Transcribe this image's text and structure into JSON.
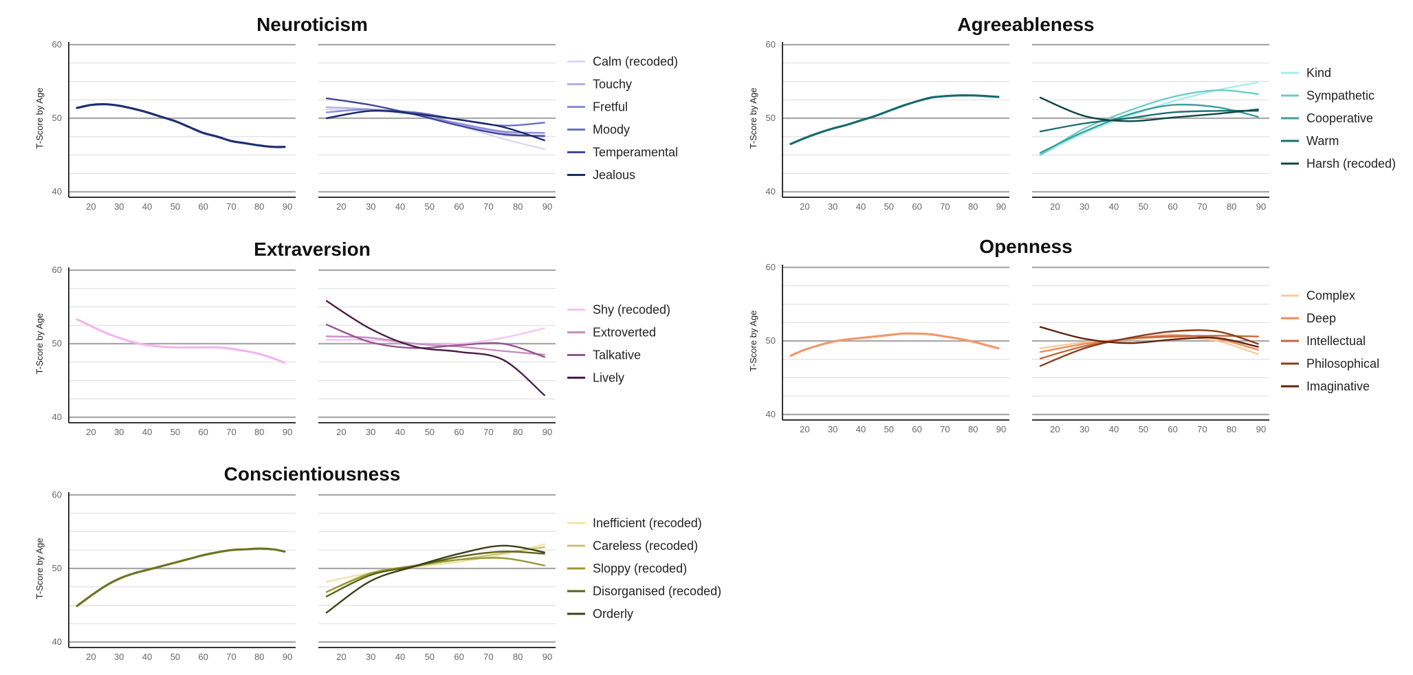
{
  "chart_data": [
    {
      "type": "line",
      "title": "Neuroticism",
      "ylabel": "T-Score by Age",
      "ylim": [
        40,
        60
      ],
      "xlim": [
        15,
        90
      ],
      "xticks": [
        20,
        30,
        40,
        50,
        60,
        70,
        80,
        90
      ],
      "yticks": [
        40,
        50,
        60
      ],
      "grid": true,
      "legend_position": "right",
      "composite": {
        "color": "#1d2f6f",
        "x": [
          15,
          20,
          25,
          30,
          35,
          40,
          45,
          50,
          55,
          60,
          65,
          70,
          75,
          80,
          85,
          89
        ],
        "y": [
          51.4,
          51.8,
          51.9,
          51.7,
          51.3,
          50.8,
          50.2,
          49.6,
          48.8,
          48.0,
          47.5,
          46.9,
          46.6,
          46.3,
          46.1,
          46.1
        ]
      },
      "series": [
        {
          "name": "Calm (recoded)",
          "color": "#d9d9f3",
          "x": [
            15,
            30,
            45,
            60,
            75,
            89
          ],
          "y": [
            51.2,
            51.0,
            50.5,
            49.0,
            47.2,
            45.8
          ]
        },
        {
          "name": "Touchy",
          "color": "#b0b0e6",
          "x": [
            15,
            30,
            45,
            60,
            75,
            89
          ],
          "y": [
            51.5,
            51.2,
            50.5,
            49.2,
            48.0,
            47.5
          ]
        },
        {
          "name": "Fretful",
          "color": "#8c8cd6",
          "x": [
            15,
            30,
            45,
            60,
            75,
            89
          ],
          "y": [
            50.8,
            51.2,
            50.5,
            49.3,
            48.2,
            48.0
          ]
        },
        {
          "name": "Moody",
          "color": "#6e70bf",
          "x": [
            15,
            30,
            45,
            60,
            75,
            89
          ],
          "y": [
            50.0,
            51.0,
            50.8,
            49.8,
            49.0,
            49.4
          ]
        },
        {
          "name": "Temperamental",
          "color": "#44489a",
          "x": [
            15,
            30,
            45,
            60,
            75,
            89
          ],
          "y": [
            52.7,
            51.8,
            50.5,
            49.0,
            47.8,
            47.6
          ]
        },
        {
          "name": "Jealous",
          "color": "#1a2a6c",
          "x": [
            15,
            30,
            45,
            60,
            75,
            89
          ],
          "y": [
            50.0,
            51.0,
            50.6,
            49.8,
            48.8,
            47.0
          ]
        }
      ]
    },
    {
      "type": "line",
      "title": "Agreeableness",
      "ylabel": "T-Score by Age",
      "ylim": [
        40,
        60
      ],
      "xlim": [
        15,
        90
      ],
      "xticks": [
        20,
        30,
        40,
        50,
        60,
        70,
        80,
        90
      ],
      "yticks": [
        40,
        50,
        60
      ],
      "grid": true,
      "legend_position": "right",
      "composite": {
        "color": "#176a6a",
        "x": [
          15,
          20,
          25,
          30,
          35,
          40,
          45,
          50,
          55,
          60,
          65,
          70,
          75,
          80,
          85,
          89
        ],
        "y": [
          46.5,
          47.3,
          48.0,
          48.6,
          49.1,
          49.7,
          50.3,
          51.0,
          51.7,
          52.3,
          52.8,
          53.0,
          53.1,
          53.1,
          53.0,
          52.9
        ]
      },
      "series": [
        {
          "name": "Kind",
          "color": "#a7ecec",
          "x": [
            15,
            30,
            45,
            60,
            75,
            89
          ],
          "y": [
            45.0,
            48.0,
            50.3,
            52.3,
            53.8,
            54.9
          ]
        },
        {
          "name": "Sympathetic",
          "color": "#6fcaca",
          "x": [
            15,
            30,
            45,
            60,
            75,
            89
          ],
          "y": [
            45.0,
            48.6,
            51.0,
            52.9,
            53.8,
            53.3
          ]
        },
        {
          "name": "Cooperative",
          "color": "#3d9e9e",
          "x": [
            15,
            30,
            45,
            60,
            75,
            89
          ],
          "y": [
            45.3,
            48.2,
            50.5,
            51.8,
            51.5,
            50.2
          ]
        },
        {
          "name": "Warm",
          "color": "#1c7070",
          "x": [
            15,
            30,
            45,
            60,
            75,
            89
          ],
          "y": [
            48.2,
            49.3,
            50.0,
            50.8,
            51.0,
            51.0
          ]
        },
        {
          "name": "Harsh (recoded)",
          "color": "#0f4545",
          "x": [
            15,
            30,
            45,
            60,
            75,
            89
          ],
          "y": [
            52.8,
            50.3,
            49.6,
            50.1,
            50.6,
            51.2
          ]
        }
      ]
    },
    {
      "type": "line",
      "title": "Extraversion",
      "ylabel": "T-Score by Age",
      "ylim": [
        40,
        60
      ],
      "xlim": [
        15,
        90
      ],
      "xticks": [
        20,
        30,
        40,
        50,
        60,
        70,
        80,
        90
      ],
      "yticks": [
        40,
        50,
        60
      ],
      "grid": true,
      "legend_position": "right",
      "composite": {
        "color": "#f2b6ef",
        "x": [
          15,
          20,
          25,
          30,
          35,
          40,
          45,
          50,
          55,
          60,
          65,
          70,
          75,
          80,
          85,
          89
        ],
        "y": [
          53.3,
          52.4,
          51.5,
          50.8,
          50.2,
          49.8,
          49.6,
          49.5,
          49.5,
          49.5,
          49.5,
          49.3,
          49.0,
          48.6,
          48.0,
          47.4
        ]
      },
      "series": [
        {
          "name": "Shy (recoded)",
          "color": "#f5c4f2",
          "x": [
            15,
            30,
            45,
            60,
            75,
            89
          ],
          "y": [
            50.5,
            50.5,
            50.0,
            50.0,
            50.8,
            52.1
          ]
        },
        {
          "name": "Extroverted",
          "color": "#c58ec0",
          "x": [
            15,
            30,
            45,
            60,
            75,
            89
          ],
          "y": [
            51.0,
            50.8,
            50.0,
            49.6,
            49.0,
            48.5
          ]
        },
        {
          "name": "Talkative",
          "color": "#94558e",
          "x": [
            15,
            30,
            45,
            60,
            75,
            89
          ],
          "y": [
            52.6,
            50.2,
            49.4,
            49.8,
            50.0,
            48.2
          ]
        },
        {
          "name": "Lively",
          "color": "#4a1f45",
          "x": [
            15,
            30,
            45,
            60,
            75,
            89
          ],
          "y": [
            55.8,
            52.0,
            49.6,
            48.9,
            47.8,
            43.0
          ]
        }
      ]
    },
    {
      "type": "line",
      "title": "Openness",
      "ylabel": "T-Score by Age",
      "ylim": [
        40,
        60
      ],
      "xlim": [
        15,
        90
      ],
      "xticks": [
        20,
        30,
        40,
        50,
        60,
        70,
        80,
        90
      ],
      "yticks": [
        40,
        50,
        60
      ],
      "grid": true,
      "legend_position": "right",
      "composite": {
        "color": "#f3976a",
        "x": [
          15,
          20,
          25,
          30,
          35,
          40,
          45,
          50,
          55,
          60,
          65,
          70,
          75,
          80,
          85,
          89
        ],
        "y": [
          48.0,
          48.8,
          49.4,
          49.9,
          50.2,
          50.4,
          50.6,
          50.8,
          51.0,
          51.0,
          50.9,
          50.6,
          50.3,
          49.9,
          49.4,
          49.0
        ]
      },
      "series": [
        {
          "name": "Complex",
          "color": "#f8cb99",
          "x": [
            15,
            30,
            45,
            60,
            75,
            89
          ],
          "y": [
            49.0,
            49.8,
            50.2,
            50.5,
            50.0,
            48.2
          ]
        },
        {
          "name": "Deep",
          "color": "#f0895c",
          "x": [
            15,
            30,
            45,
            60,
            75,
            89
          ],
          "y": [
            48.5,
            49.6,
            50.3,
            50.8,
            50.3,
            48.8
          ]
        },
        {
          "name": "Intellectual",
          "color": "#c0683c",
          "x": [
            15,
            30,
            45,
            60,
            75,
            89
          ],
          "y": [
            47.6,
            49.3,
            50.3,
            50.6,
            50.7,
            50.6
          ]
        },
        {
          "name": "Philosophical",
          "color": "#8a3d1a",
          "x": [
            15,
            30,
            45,
            60,
            75,
            89
          ],
          "y": [
            46.6,
            49.0,
            50.4,
            51.3,
            51.3,
            49.6
          ]
        },
        {
          "name": "Imaginative",
          "color": "#5e2310",
          "x": [
            15,
            30,
            45,
            60,
            75,
            89
          ],
          "y": [
            51.9,
            50.3,
            49.7,
            50.2,
            50.4,
            49.2
          ]
        }
      ]
    },
    {
      "type": "line",
      "title": "Conscientiousness",
      "ylabel": "T-Score by Age",
      "ylim": [
        40,
        60
      ],
      "xlim": [
        15,
        90
      ],
      "xticks": [
        20,
        30,
        40,
        50,
        60,
        70,
        80,
        90
      ],
      "yticks": [
        40,
        50,
        60
      ],
      "grid": true,
      "legend_position": "right",
      "composite": {
        "color": "#6c7424",
        "x": [
          15,
          20,
          25,
          30,
          35,
          40,
          45,
          50,
          55,
          60,
          65,
          70,
          75,
          80,
          85,
          89
        ],
        "y": [
          44.9,
          46.3,
          47.6,
          48.6,
          49.3,
          49.8,
          50.3,
          50.8,
          51.3,
          51.8,
          52.2,
          52.5,
          52.6,
          52.7,
          52.6,
          52.3
        ]
      },
      "series": [
        {
          "name": "Inefficient (recoded)",
          "color": "#eee4a4",
          "x": [
            15,
            30,
            45,
            60,
            75,
            89
          ],
          "y": [
            48.2,
            49.4,
            50.2,
            50.9,
            51.9,
            53.3
          ]
        },
        {
          "name": "Careless (recoded)",
          "color": "#c5c274",
          "x": [
            15,
            30,
            45,
            60,
            75,
            89
          ],
          "y": [
            46.8,
            49.4,
            50.3,
            51.2,
            52.1,
            52.9
          ]
        },
        {
          "name": "Sloppy (recoded)",
          "color": "#949a3a",
          "x": [
            15,
            30,
            45,
            60,
            75,
            89
          ],
          "y": [
            46.8,
            49.3,
            50.4,
            51.2,
            51.4,
            50.4
          ]
        },
        {
          "name": "Disorganised (recoded)",
          "color": "#5c6210",
          "x": [
            15,
            30,
            45,
            60,
            75,
            89
          ],
          "y": [
            46.2,
            49.1,
            50.3,
            51.6,
            52.3,
            52.0
          ]
        },
        {
          "name": "Orderly",
          "color": "#3c3f1a",
          "x": [
            15,
            30,
            45,
            60,
            75,
            89
          ],
          "y": [
            44.0,
            48.3,
            50.3,
            52.0,
            53.1,
            52.2
          ]
        }
      ]
    }
  ]
}
